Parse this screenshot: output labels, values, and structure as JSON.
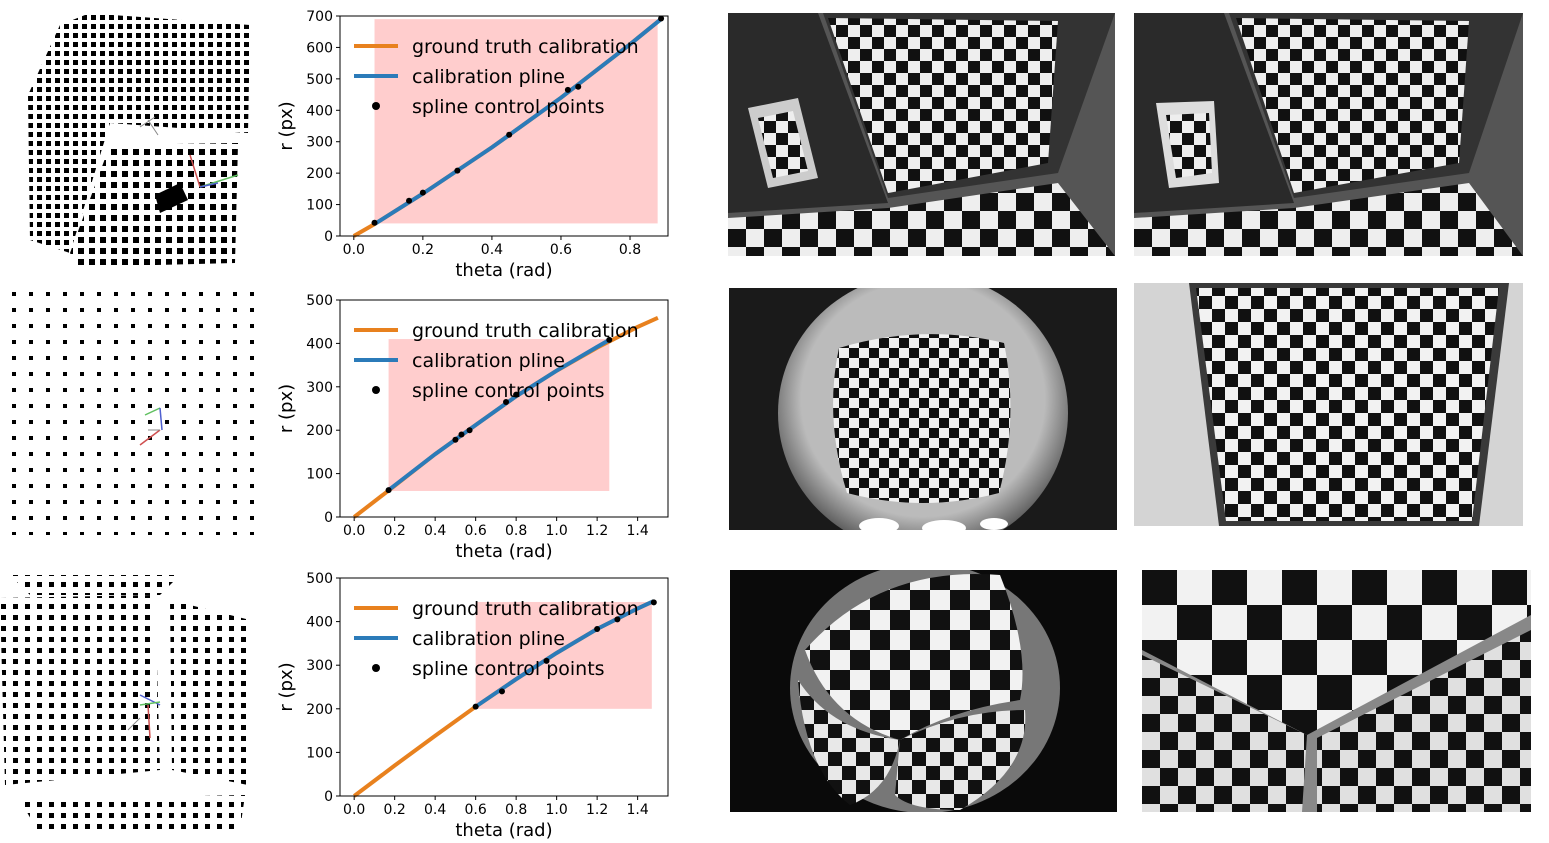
{
  "colors": {
    "ground_truth": "#e8811e",
    "spline": "#2b7bb9",
    "control_points": "#000000",
    "region": "#ffc8c8"
  },
  "legend": {
    "items": [
      {
        "label": "ground truth calibration",
        "marker": "line",
        "color": "#e8811e"
      },
      {
        "label": "calibration pline",
        "marker": "line",
        "color": "#2b7bb9"
      },
      {
        "label": "spline control points",
        "marker": "dot",
        "color": "#000000"
      }
    ]
  },
  "chart_data": [
    {
      "type": "line",
      "xlabel": "theta (rad)",
      "ylabel": "r (px)",
      "xlim": [
        -0.04,
        0.91
      ],
      "ylim": [
        0,
        700
      ],
      "xticks": [
        0.0,
        0.2,
        0.4,
        0.6,
        0.8
      ],
      "xtick_labels": [
        "0.0",
        "0.2",
        "0.4",
        "0.6",
        "0.8"
      ],
      "yticks": [
        0,
        100,
        200,
        300,
        400,
        500,
        600,
        700
      ],
      "ytick_labels": [
        "0",
        "100",
        "200",
        "300",
        "400",
        "500",
        "600",
        "700"
      ],
      "legend_position": "upper-left",
      "highlight_region": {
        "x": [
          0.06,
          0.88
        ],
        "y": [
          40,
          690
        ]
      },
      "series": [
        {
          "name": "ground truth calibration",
          "x": [
            0.0,
            0.06,
            0.2,
            0.4,
            0.6,
            0.8,
            0.89
          ],
          "y": [
            0,
            38,
            135,
            282,
            440,
            610,
            690
          ]
        },
        {
          "name": "calibration pline",
          "x": [
            0.06,
            0.2,
            0.4,
            0.6,
            0.8,
            0.89
          ],
          "y": [
            38,
            135,
            282,
            440,
            610,
            690
          ]
        },
        {
          "name": "spline control points",
          "x": [
            0.06,
            0.16,
            0.2,
            0.3,
            0.45,
            0.62,
            0.65,
            0.89
          ],
          "y": [
            42,
            112,
            138,
            208,
            322,
            465,
            475,
            692
          ]
        }
      ]
    },
    {
      "type": "line",
      "xlabel": "theta (rad)",
      "ylabel": "r (px)",
      "xlim": [
        -0.07,
        1.55
      ],
      "ylim": [
        0,
        500
      ],
      "xticks": [
        0.0,
        0.2,
        0.4,
        0.6,
        0.8,
        1.0,
        1.2,
        1.4
      ],
      "xtick_labels": [
        "0.0",
        "0.2",
        "0.4",
        "0.6",
        "0.8",
        "1.0",
        "1.2",
        "1.4"
      ],
      "yticks": [
        0,
        100,
        200,
        300,
        400,
        500
      ],
      "ytick_labels": [
        "0",
        "100",
        "200",
        "300",
        "400",
        "500"
      ],
      "legend_position": "upper-left",
      "highlight_region": {
        "x": [
          0.17,
          1.26
        ],
        "y": [
          60,
          410
        ]
      },
      "series": [
        {
          "name": "ground truth calibration",
          "x": [
            0.0,
            0.2,
            0.4,
            0.6,
            0.8,
            1.0,
            1.2,
            1.4,
            1.5
          ],
          "y": [
            0,
            72,
            145,
            212,
            278,
            337,
            390,
            438,
            459
          ]
        },
        {
          "name": "calibration pline",
          "x": [
            0.17,
            0.4,
            0.6,
            0.8,
            1.0,
            1.2,
            1.26
          ],
          "y": [
            62,
            145,
            212,
            278,
            337,
            392,
            408
          ]
        },
        {
          "name": "spline control points",
          "x": [
            0.17,
            0.5,
            0.53,
            0.57,
            0.75,
            0.8,
            1.26
          ],
          "y": [
            62,
            178,
            190,
            200,
            265,
            282,
            408
          ]
        }
      ]
    },
    {
      "type": "line",
      "xlabel": "theta (rad)",
      "ylabel": "r (px)",
      "xlim": [
        -0.07,
        1.55
      ],
      "ylim": [
        0,
        500
      ],
      "xticks": [
        0.0,
        0.2,
        0.4,
        0.6,
        0.8,
        1.0,
        1.2,
        1.4
      ],
      "xtick_labels": [
        "0.0",
        "0.2",
        "0.4",
        "0.6",
        "0.8",
        "1.0",
        "1.2",
        "1.4"
      ],
      "yticks": [
        0,
        100,
        200,
        300,
        400,
        500
      ],
      "ytick_labels": [
        "0",
        "100",
        "200",
        "300",
        "400",
        "500"
      ],
      "legend_position": "upper-left",
      "highlight_region": {
        "x": [
          0.6,
          1.47
        ],
        "y": [
          200,
          445
        ]
      },
      "series": [
        {
          "name": "ground truth calibration",
          "x": [
            0.0,
            0.2,
            0.4,
            0.6,
            0.8,
            1.0,
            1.2,
            1.4,
            1.48
          ],
          "y": [
            0,
            70,
            138,
            205,
            268,
            328,
            383,
            430,
            447
          ]
        },
        {
          "name": "calibration pline",
          "x": [
            0.6,
            0.8,
            1.0,
            1.2,
            1.4,
            1.48
          ],
          "y": [
            205,
            268,
            328,
            383,
            430,
            447
          ]
        },
        {
          "name": "spline control points",
          "x": [
            0.6,
            0.73,
            0.95,
            1.2,
            1.3,
            1.48
          ],
          "y": [
            205,
            240,
            310,
            383,
            405,
            444
          ]
        }
      ]
    }
  ]
}
